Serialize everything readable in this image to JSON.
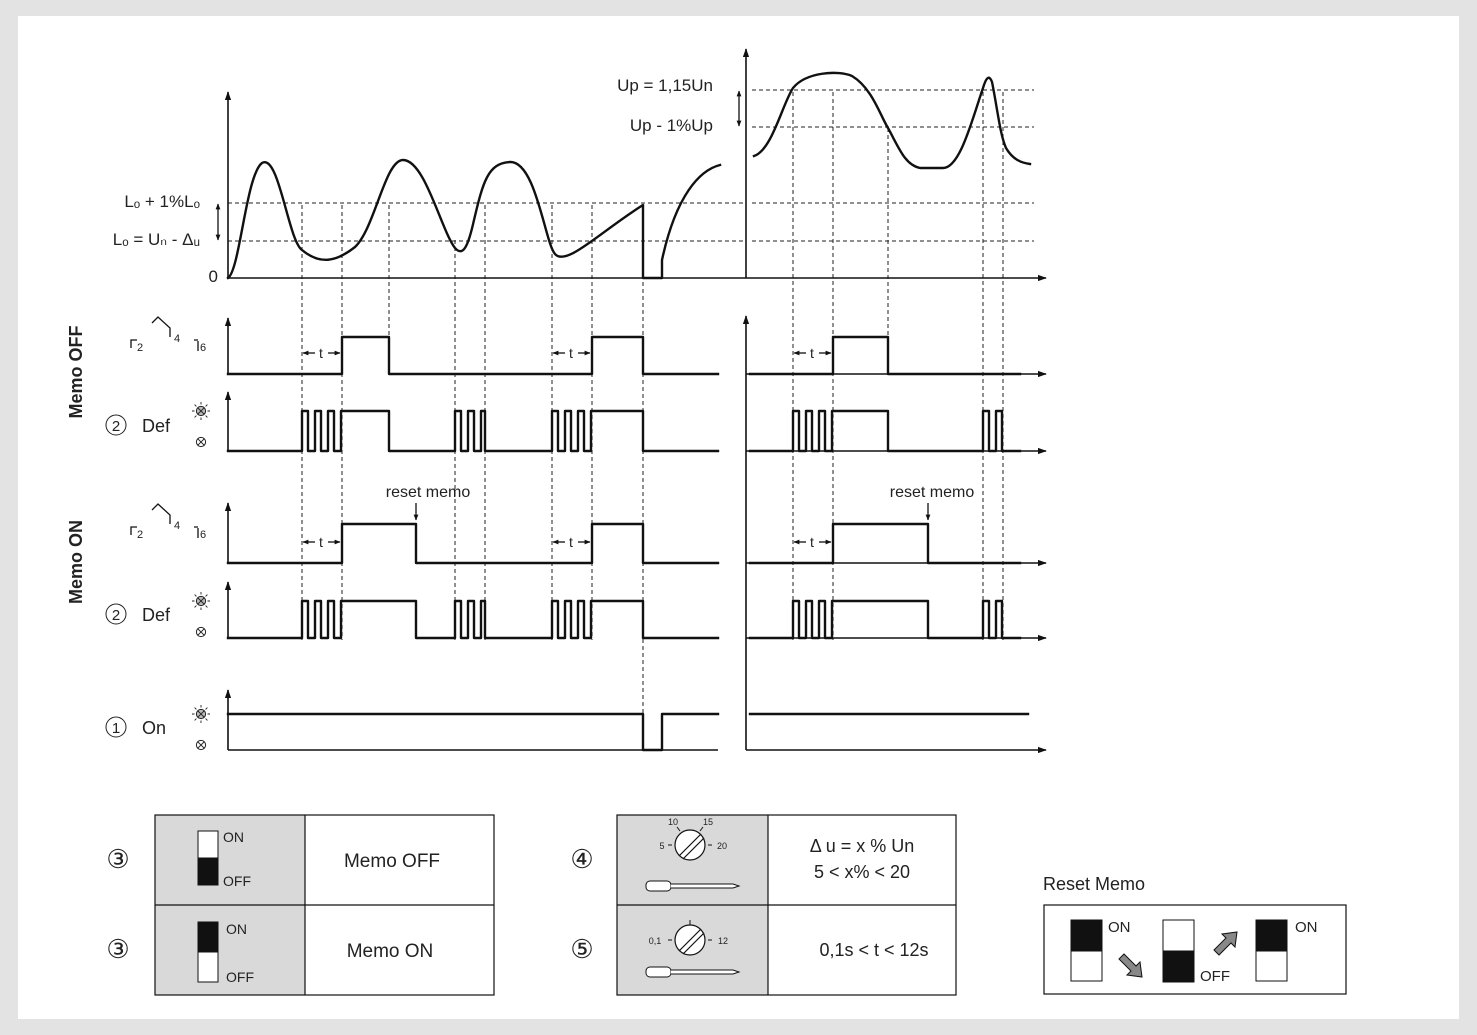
{
  "labels": {
    "lo_plus": "Lₒ + 1%Lₒ",
    "lo_eq": "Lₒ = Uₙ - Δᵤ",
    "zero": "0",
    "up": "Up = 1,15Un",
    "up_minus": "Up - 1%Up",
    "memo_off": "Memo OFF",
    "memo_on": "Memo ON",
    "def": "Def",
    "on": "On",
    "t": "t",
    "reset_memo": "reset memo",
    "relay_2": "2",
    "relay_4": "4",
    "relay_6": "6",
    "num_1": "1",
    "num_2": "2"
  },
  "table": {
    "row1_num": "③",
    "row1_on": "ON",
    "row1_off": "OFF",
    "row1_label": "Memo OFF",
    "row2_num": "③",
    "row2_on": "ON",
    "row2_off": "OFF",
    "row2_label": "Memo ON",
    "row3_num": "④",
    "row3_line1": "Δ u = x % Un",
    "row3_line2": "5 < x% < 20",
    "row3_dial": [
      "10",
      "15",
      "5",
      "20"
    ],
    "row4_num": "⑤",
    "row4_text": "0,1s < t < 12s",
    "row4_dial": [
      "0,1",
      "12"
    ]
  },
  "reset": {
    "title": "Reset Memo",
    "on1": "ON",
    "off": "OFF",
    "on2": "ON"
  }
}
